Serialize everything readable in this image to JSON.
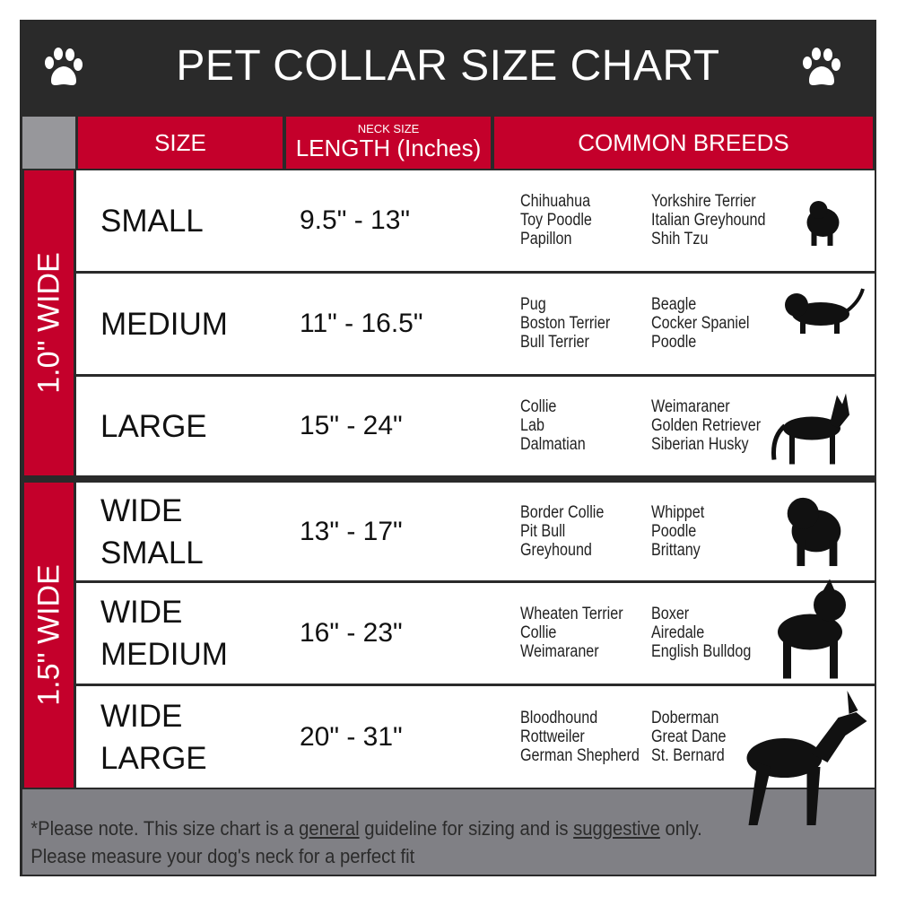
{
  "title": "PET COLLAR SIZE CHART",
  "icons": {
    "left": "paw-print-icon",
    "right": "paw-print-icon"
  },
  "colors": {
    "accent": "#c4002b",
    "title_bar": "#2a2a2a",
    "footer": "#808085"
  },
  "headers": {
    "size": "SIZE",
    "length_small": "NECK SIZE",
    "length": "LENGTH (Inches)",
    "breeds": "COMMON BREEDS"
  },
  "groups": [
    {
      "label": "1.0\" WIDE"
    },
    {
      "label": "1.5\" WIDE"
    }
  ],
  "rows": [
    {
      "size": "SMALL",
      "length": "9.5\" - 13\"",
      "breeds_a": [
        "Chihuahua",
        "Toy Poodle",
        "Papillon"
      ],
      "breeds_b": [
        "Yorkshire Terrier",
        "Italian Greyhound",
        "Shih Tzu"
      ],
      "icon": "small-dog-silhouette-icon"
    },
    {
      "size": "MEDIUM",
      "length": "11\" - 16.5\"",
      "breeds_a": [
        "Pug",
        "Boston Terrier",
        "Bull Terrier"
      ],
      "breeds_b": [
        "Beagle",
        "Cocker Spaniel",
        "Poodle"
      ],
      "icon": "medium-dog-silhouette-icon"
    },
    {
      "size": "LARGE",
      "length": "15\" - 24\"",
      "breeds_a": [
        "Collie",
        "Lab",
        "Dalmatian"
      ],
      "breeds_b": [
        "Weimaraner",
        "Golden Retriever",
        "Siberian Husky"
      ],
      "icon": "large-dog-silhouette-icon"
    },
    {
      "size": "WIDE SMALL",
      "size_lines": [
        "WIDE",
        "SMALL"
      ],
      "length": "13\" - 17\"",
      "breeds_a": [
        "Border Collie",
        "Pit Bull",
        "Greyhound"
      ],
      "breeds_b": [
        "Whippet",
        "Poodle",
        "Brittany"
      ],
      "icon": "bulldog-silhouette-icon"
    },
    {
      "size": "WIDE MEDIUM",
      "size_lines": [
        "WIDE",
        "MEDIUM"
      ],
      "length": "16\" - 23\"",
      "breeds_a": [
        "Wheaten Terrier",
        "Collie",
        "Weimaraner"
      ],
      "breeds_b": [
        "Boxer",
        "Airedale",
        "English Bulldog"
      ],
      "icon": "pitbull-silhouette-icon"
    },
    {
      "size": "WIDE LARGE",
      "size_lines": [
        "WIDE",
        "LARGE"
      ],
      "length": "20\" - 31\"",
      "breeds_a": [
        "Bloodhound",
        "Rottweiler",
        "German Shepherd"
      ],
      "breeds_b": [
        "Doberman",
        "Great Dane",
        "St. Bernard"
      ],
      "icon": "doberman-silhouette-icon"
    }
  ],
  "footer": {
    "line1_a": "*Please note. This size chart is a ",
    "line1_u1": "general",
    "line1_b": " guideline for sizing and is ",
    "line1_u2": "suggestive",
    "line1_c": " only.",
    "line2": "Please measure your dog's neck for a perfect fit"
  }
}
